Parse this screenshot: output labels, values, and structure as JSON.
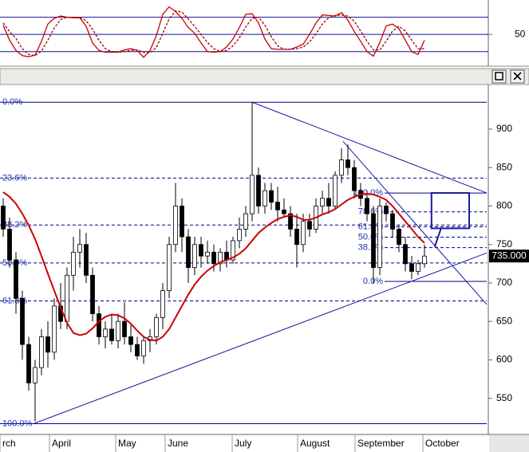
{
  "chart_data": [
    {
      "type": "oscillator",
      "x": [
        0,
        1,
        2,
        3,
        4,
        5,
        6,
        7,
        8,
        9,
        10,
        11,
        12,
        13,
        14,
        15,
        16,
        17,
        18,
        19,
        20,
        21,
        22,
        23,
        24,
        25,
        26,
        27,
        28,
        29,
        30,
        31,
        32,
        33,
        34,
        35,
        36,
        37,
        38,
        39,
        40,
        41,
        42,
        43,
        44,
        45,
        46,
        47,
        48,
        49,
        50,
        51,
        52,
        53,
        54,
        55,
        56,
        57,
        58,
        59,
        60,
        61,
        62,
        63,
        64,
        65,
        66
      ],
      "xlim": [
        -0.5,
        75.75
      ],
      "ylim": [
        -4,
        110
      ],
      "yticks": [
        50
      ],
      "levels": [
        20,
        50,
        80
      ],
      "levels_color": "#1010a0",
      "series": [
        {
          "color": "#cc0000",
          "dashed": false,
          "values": [
            66,
            40,
            22,
            13,
            11,
            14,
            38,
            68,
            78,
            82,
            80,
            79,
            79,
            64,
            35,
            22,
            19,
            19,
            19,
            23,
            25,
            22,
            10,
            22,
            48,
            85,
            98,
            90,
            78,
            62,
            52,
            35,
            20,
            19,
            20,
            28,
            42,
            62,
            85,
            86,
            70,
            42,
            25,
            24,
            24,
            24,
            28,
            33,
            50,
            70,
            84,
            83,
            82,
            88,
            75,
            55,
            38,
            20,
            12,
            36,
            65,
            68,
            60,
            40,
            20,
            15,
            40
          ]
        },
        {
          "color": "#990000",
          "dashed": true,
          "values": [
            70,
            55,
            43,
            25,
            15,
            13,
            21,
            40,
            61,
            76,
            80,
            80,
            79,
            74,
            59,
            40,
            25,
            20,
            19,
            20,
            22,
            23,
            19,
            18,
            27,
            52,
            77,
            91,
            89,
            77,
            64,
            50,
            36,
            25,
            20,
            22,
            30,
            44,
            63,
            78,
            80,
            66,
            46,
            30,
            24,
            24,
            25,
            28,
            37,
            51,
            68,
            79,
            83,
            84,
            82,
            73,
            56,
            38,
            23,
            23,
            38,
            56,
            64,
            56,
            40,
            25,
            25
          ]
        }
      ]
    },
    {
      "type": "candlestick",
      "x": [
        0,
        1,
        2,
        3,
        4,
        5,
        6,
        7,
        8,
        9,
        10,
        11,
        12,
        13,
        14,
        15,
        16,
        17,
        18,
        19,
        20,
        21,
        22,
        23,
        24,
        25,
        26,
        27,
        28,
        29,
        30,
        31,
        32,
        33,
        34,
        35,
        36,
        37,
        38,
        39,
        40,
        41,
        42,
        43,
        44,
        45,
        46,
        47,
        48,
        49,
        50,
        51,
        52,
        53,
        54,
        55,
        56,
        57,
        58,
        59,
        60,
        61,
        62,
        63,
        64,
        65,
        66
      ],
      "open": [
        800,
        770,
        730,
        680,
        620,
        570,
        590,
        630,
        610,
        670,
        650,
        710,
        740,
        750,
        710,
        660,
        630,
        640,
        625,
        650,
        630,
        620,
        605,
        625,
        630,
        655,
        690,
        750,
        800,
        760,
        720,
        750,
        735,
        740,
        725,
        740,
        730,
        755,
        770,
        790,
        840,
        800,
        820,
        805,
        795,
        790,
        770,
        750,
        780,
        770,
        800,
        810,
        800,
        840,
        860,
        850,
        820,
        810,
        790,
        720,
        800,
        790,
        770,
        750,
        725,
        715,
        725
      ],
      "high": [
        810,
        785,
        740,
        690,
        630,
        600,
        640,
        650,
        680,
        700,
        720,
        760,
        770,
        765,
        720,
        670,
        650,
        660,
        660,
        675,
        645,
        630,
        630,
        640,
        660,
        700,
        760,
        830,
        810,
        770,
        760,
        760,
        755,
        750,
        745,
        755,
        760,
        785,
        800,
        935,
        850,
        830,
        830,
        825,
        810,
        800,
        790,
        790,
        790,
        810,
        820,
        830,
        845,
        875,
        880,
        860,
        830,
        820,
        800,
        810,
        805,
        795,
        775,
        760,
        735,
        730,
        750
      ],
      "low": [
        760,
        720,
        660,
        600,
        560,
        520,
        580,
        590,
        600,
        640,
        640,
        690,
        720,
        700,
        650,
        620,
        615,
        620,
        615,
        620,
        610,
        600,
        595,
        610,
        620,
        640,
        680,
        740,
        740,
        700,
        710,
        720,
        725,
        715,
        715,
        720,
        725,
        745,
        760,
        780,
        790,
        790,
        795,
        780,
        785,
        760,
        720,
        740,
        760,
        765,
        790,
        790,
        795,
        830,
        840,
        810,
        800,
        780,
        700,
        710,
        780,
        760,
        740,
        715,
        705,
        710,
        720
      ],
      "close": [
        770,
        730,
        680,
        620,
        570,
        590,
        630,
        610,
        670,
        650,
        710,
        740,
        750,
        710,
        660,
        630,
        640,
        625,
        650,
        630,
        620,
        605,
        625,
        630,
        655,
        690,
        750,
        800,
        760,
        720,
        750,
        735,
        740,
        725,
        740,
        730,
        755,
        770,
        790,
        840,
        800,
        820,
        805,
        795,
        790,
        770,
        750,
        780,
        770,
        800,
        810,
        800,
        840,
        860,
        850,
        820,
        810,
        790,
        720,
        800,
        790,
        770,
        750,
        725,
        715,
        725,
        735
      ],
      "ma": {
        "color": "#cc0000",
        "values": [
          818,
          812,
          803,
          790,
          775,
          757,
          735,
          712,
          690,
          668,
          648,
          635,
          632,
          634,
          641,
          650,
          656,
          659,
          658,
          654,
          647,
          638,
          630,
          626,
          625,
          630,
          640,
          655,
          670,
          685,
          698,
          708,
          716,
          722,
          727,
          730,
          733,
          738,
          745,
          755,
          765,
          772,
          778,
          783,
          786,
          788,
          786,
          782,
          782,
          785,
          789,
          792,
          796,
          802,
          808,
          812,
          815,
          816,
          815,
          812,
          808,
          800,
          790,
          780,
          770,
          760,
          752
        ]
      },
      "xlim": [
        -0.5,
        75.75
      ],
      "xticks": [
        {
          "value": -0.5,
          "label": "rch"
        },
        {
          "value": 7.25,
          "label": "April"
        },
        {
          "value": 17.625,
          "label": "May"
        },
        {
          "value": 25.375,
          "label": "June"
        },
        {
          "value": 35.875,
          "label": "July"
        },
        {
          "value": 46.125,
          "label": "August"
        },
        {
          "value": 55.125,
          "label": "September"
        },
        {
          "value": 65.75,
          "label": "October"
        }
      ],
      "ylim": [
        503,
        957
      ],
      "yticks": [
        550,
        600,
        650,
        700,
        750,
        800,
        850,
        900
      ],
      "fibs": [
        {
          "from": 935,
          "to": 517,
          "start": -0.5,
          "color": "#000080",
          "levels": [
            {
              "value": 0,
              "label": "0.0%"
            },
            {
              "value": 23.6,
              "label": "23.6%"
            },
            {
              "value": 38.2,
              "label": "38.2%"
            },
            {
              "value": 50,
              "label": "50.0%"
            },
            {
              "value": 61.8,
              "label": "61.8%"
            },
            {
              "value": 100,
              "label": "100.0%"
            }
          ]
        },
        {
          "from": 702,
          "to": 817,
          "start": 59.75,
          "color": "#000080",
          "levels": [
            {
              "value": 0,
              "label": "0.0%"
            },
            {
              "value": 38.2,
              "label": "38.2%"
            },
            {
              "value": 50,
              "label": "50.0%"
            },
            {
              "value": 61.8,
              "label": "61.8%"
            },
            {
              "value": 78.6,
              "label": "78.6%"
            },
            {
              "value": 100,
              "label": "100.0%"
            }
          ]
        }
      ],
      "trendlines": [
        {
          "x": [
            39,
            75.75
          ],
          "y": [
            935,
            817
          ]
        },
        {
          "x": [
            4.75,
            75.75
          ],
          "y": [
            517,
            739
          ]
        },
        {
          "x": [
            53.25,
            75.75
          ],
          "y": [
            884,
            672
          ]
        }
      ],
      "trend_color": "#1a1aa0",
      "projection": {
        "x": [
          67.6,
          68.6
        ],
        "y": [
          747,
          771
        ]
      },
      "target_box": {
        "x": [
          67.1,
          73
        ],
        "y": [
          771,
          817
        ]
      },
      "last": {
        "value": 735,
        "label": "735.000"
      }
    }
  ]
}
